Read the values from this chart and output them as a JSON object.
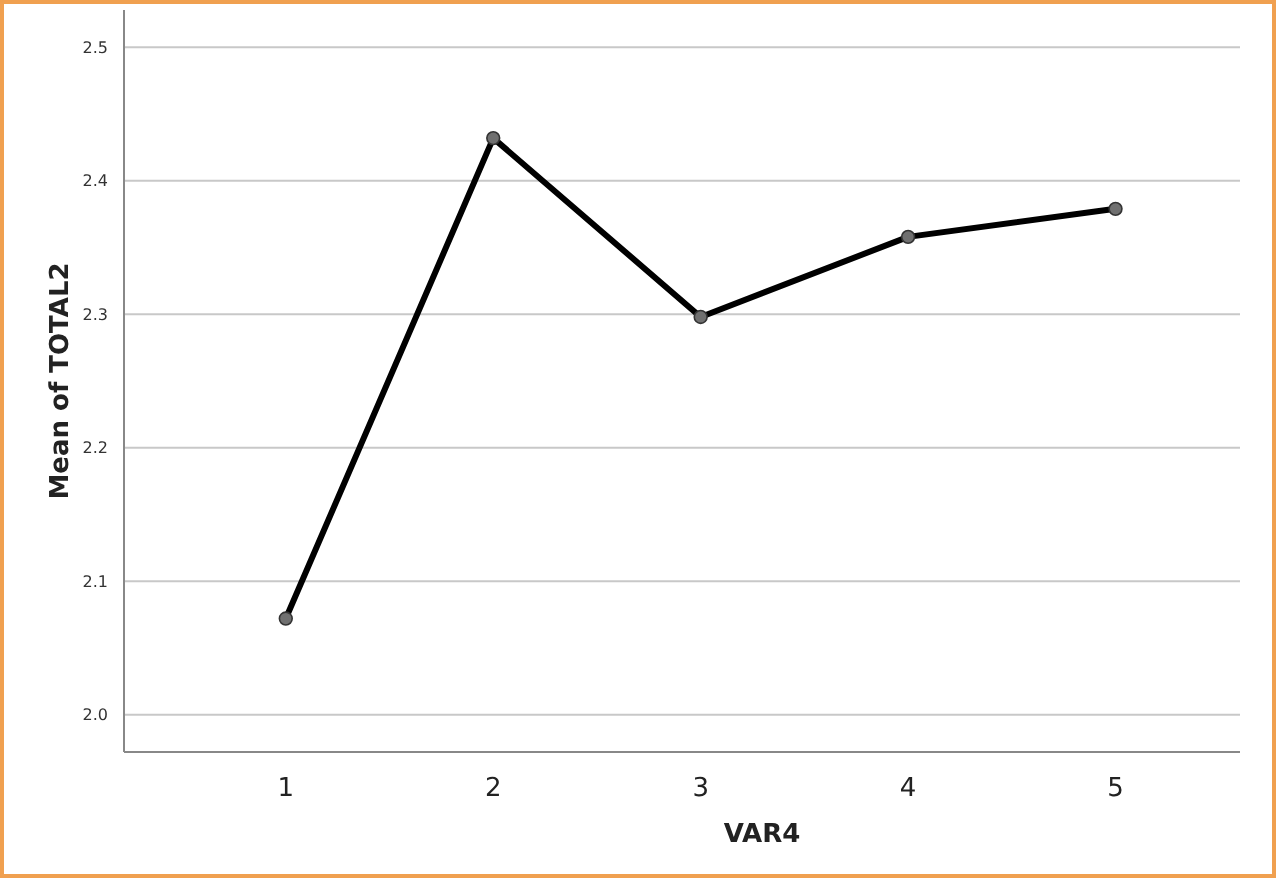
{
  "chart_data": {
    "type": "line",
    "xlabel": "VAR4",
    "ylabel": "Mean of TOTAL2",
    "categories": [
      "1",
      "2",
      "3",
      "4",
      "5"
    ],
    "series": [
      {
        "color": "#000000",
        "values": [
          2.072,
          2.432,
          2.298,
          2.358,
          2.379
        ]
      }
    ],
    "ylim": [
      1.972,
      2.528
    ],
    "yticks": [
      {
        "value": 2.0,
        "label": "2.0"
      },
      {
        "value": 2.1,
        "label": "2.1"
      },
      {
        "value": 2.2,
        "label": "2.2"
      },
      {
        "value": 2.3,
        "label": "2.3"
      },
      {
        "value": 2.4,
        "label": "2.4"
      },
      {
        "value": 2.5,
        "label": "2.5"
      }
    ],
    "grid": "y",
    "marker": "circle",
    "line_style": "solid"
  }
}
